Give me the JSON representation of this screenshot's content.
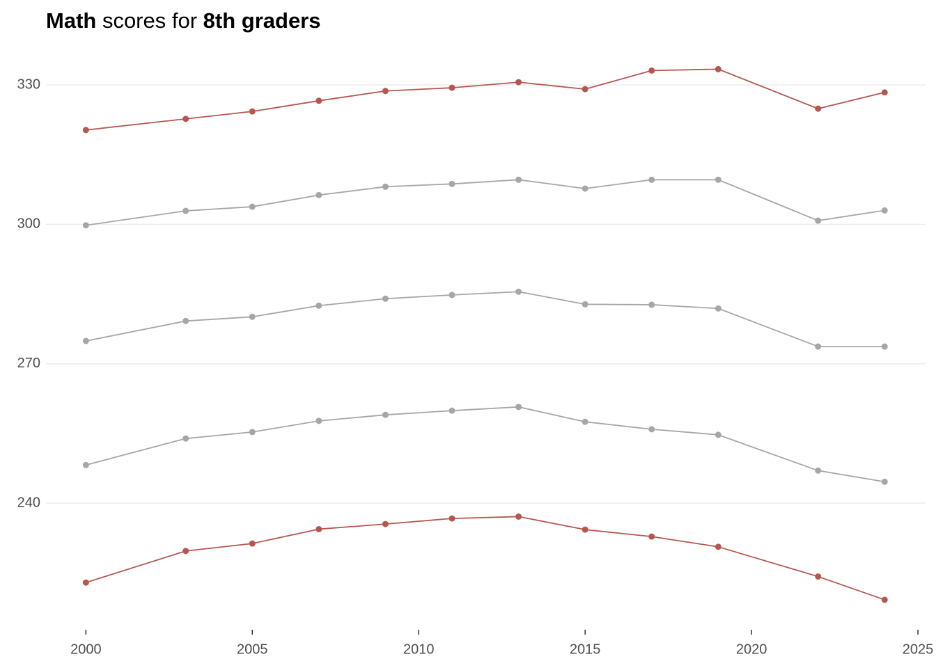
{
  "chart_data": {
    "type": "line",
    "title": [
      "Math",
      " scores for ",
      "8th graders"
    ],
    "title_bold": [
      true,
      false,
      true
    ],
    "x": [
      2000,
      2003,
      2005,
      2007,
      2009,
      2011,
      2013,
      2015,
      2017,
      2019,
      2022,
      2024
    ],
    "series": [
      {
        "color": "#b5574f",
        "values": [
          320.3,
          322.7,
          324.3,
          326.6,
          328.7,
          329.4,
          330.6,
          329.1,
          333.1,
          333.4,
          324.9,
          328.4
        ]
      },
      {
        "color": "#a6a6a6",
        "values": [
          299.8,
          302.9,
          303.8,
          306.3,
          308.1,
          308.7,
          309.6,
          307.7,
          309.6,
          309.6,
          300.8,
          303.0
        ]
      },
      {
        "color": "#a6a6a6",
        "values": [
          274.9,
          279.2,
          280.1,
          282.5,
          284.0,
          284.8,
          285.5,
          282.8,
          282.7,
          281.9,
          273.7,
          273.7
        ]
      },
      {
        "color": "#a6a6a6",
        "values": [
          248.2,
          253.9,
          255.3,
          257.7,
          259.0,
          259.9,
          260.7,
          257.5,
          255.9,
          254.7,
          247.0,
          244.6
        ]
      },
      {
        "color": "#b5574f",
        "values": [
          222.9,
          229.7,
          231.3,
          234.4,
          235.5,
          236.7,
          237.1,
          234.3,
          232.8,
          230.6,
          224.2,
          219.2
        ]
      }
    ],
    "xlim": [
      1998.8,
      2025.25
    ],
    "xticks": [
      2000,
      2005,
      2010,
      2015,
      2020,
      2025
    ],
    "ylim": [
      213.5,
      339.3
    ],
    "yticks": [
      240,
      270,
      300,
      330
    ],
    "grid": true
  }
}
